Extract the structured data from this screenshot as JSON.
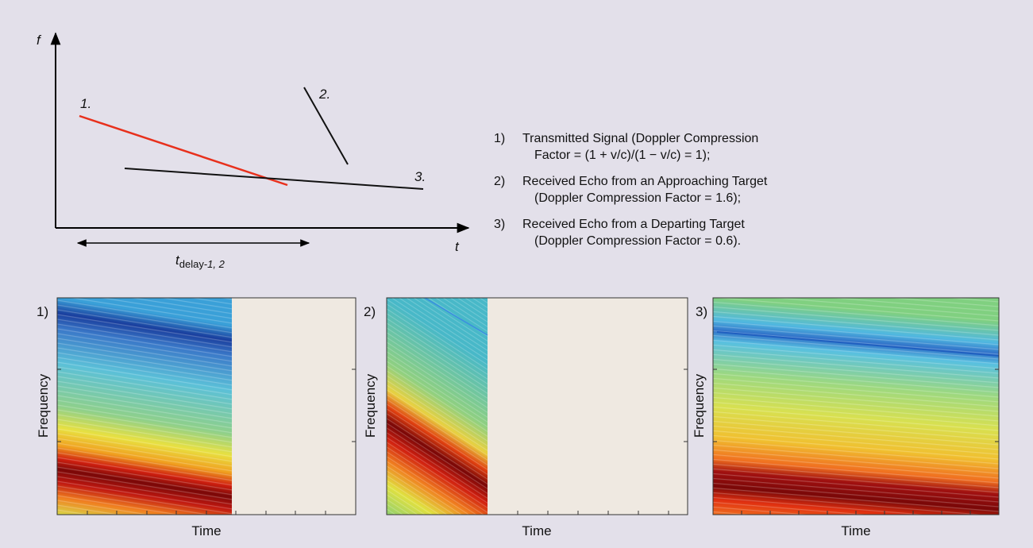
{
  "diagram": {
    "axis_labels": {
      "f": "f",
      "t": "t"
    },
    "line_labels": [
      "1.",
      "2.",
      "3."
    ],
    "delay_label": {
      "main": "t",
      "subscript": "delay-",
      "subscript_italic": "1, 2"
    }
  },
  "legend": [
    {
      "number": "1)",
      "lines": [
        "Transmitted Signal (Doppler Compression",
        "Factor = (1 + v/c)/(1 − v/c) = 1);"
      ]
    },
    {
      "number": "2)",
      "lines": [
        "Received Echo from an Approaching Target",
        "(Doppler Compression Factor = 1.6);"
      ]
    },
    {
      "number": "3)",
      "lines": [
        "Received Echo from a Departing Target",
        "(Doppler Compression Factor = 0.6)."
      ]
    }
  ],
  "panels": [
    {
      "label": "1)",
      "y_label": "Frequency",
      "x_label": "Time"
    },
    {
      "label": "2)",
      "y_label": "Frequency",
      "x_label": "Time"
    },
    {
      "label": "3)",
      "y_label": "Frequency",
      "x_label": "Time"
    }
  ]
}
